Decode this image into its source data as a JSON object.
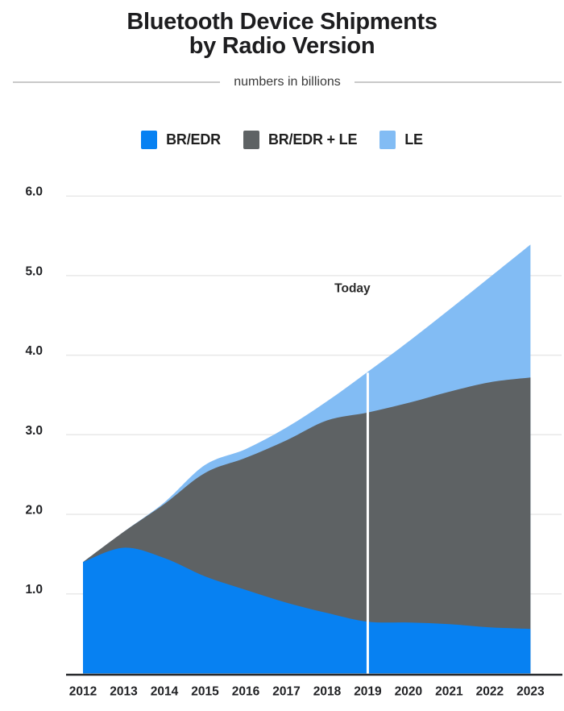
{
  "header": {
    "title_line1": "Bluetooth Device Shipments",
    "title_line2": "by Radio Version",
    "subtitle": "numbers in billions"
  },
  "chart_data": {
    "type": "area",
    "stacked": true,
    "title": "Bluetooth Device Shipments by Radio Version",
    "units_note": "numbers in billions",
    "categories": [
      "2012",
      "2013",
      "2014",
      "2015",
      "2016",
      "2017",
      "2018",
      "2019",
      "2020",
      "2021",
      "2022",
      "2023"
    ],
    "series": [
      {
        "name": "BR/EDR",
        "color": "#0781f2",
        "values": [
          1.4,
          1.58,
          1.45,
          1.22,
          1.05,
          0.89,
          0.76,
          0.65,
          0.64,
          0.62,
          0.58,
          0.56
        ]
      },
      {
        "name": "BR/EDR + LE",
        "color": "#5e6264",
        "values": [
          0.0,
          0.2,
          0.68,
          1.3,
          1.66,
          2.04,
          2.42,
          2.63,
          2.76,
          2.92,
          3.08,
          3.16
        ]
      },
      {
        "name": "LE",
        "color": "#82bcf4",
        "values": [
          0.0,
          0.0,
          0.02,
          0.1,
          0.11,
          0.16,
          0.24,
          0.51,
          0.77,
          1.03,
          1.32,
          1.67
        ]
      }
    ],
    "y_tick_labels": [
      "1.0",
      "2.0",
      "3.0",
      "4.0",
      "5.0",
      "6.0"
    ],
    "y_tick_values": [
      1,
      2,
      3,
      4,
      5,
      6
    ],
    "ylim": [
      0,
      6.3
    ],
    "grid": true,
    "legend_position": "top",
    "annotation": {
      "label": "Today",
      "category": "2019"
    }
  },
  "colors": {
    "background": "#ffffff",
    "text_dark": "#202124",
    "gridline": "#e8e8e8",
    "axis_line": "#26282b",
    "divider": "#c9c9c9",
    "today_line": "#ffffff"
  }
}
